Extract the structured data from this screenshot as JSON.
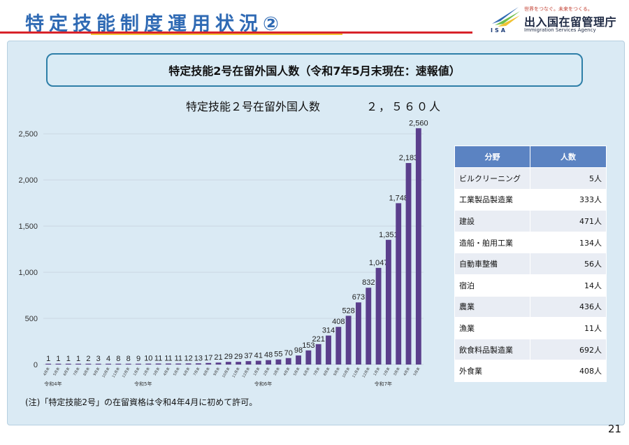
{
  "header": {
    "title": "特定技能制度運用状況②",
    "agency_tagline": "世界をつなぐ。未来をつくる。",
    "agency_name_jp": "出入国在留管理庁",
    "agency_name_en": "Immigration Services Agency",
    "agency_abbr": "ISA"
  },
  "subtitle": "特定技能2号在留外国人数（令和7年5月末現在：速報値）",
  "total": {
    "label": "特定技能２号在留外国人数",
    "value": "２，５６０人"
  },
  "field_table": {
    "headers": [
      "分野",
      "人数"
    ],
    "rows": [
      {
        "field": "ビルクリーニング",
        "count": "5人"
      },
      {
        "field": "工業製品製造業",
        "count": "333人"
      },
      {
        "field": "建設",
        "count": "471人"
      },
      {
        "field": "造船・舶用工業",
        "count": "134人"
      },
      {
        "field": "自動車整備",
        "count": "56人"
      },
      {
        "field": "宿泊",
        "count": "14人"
      },
      {
        "field": "農業",
        "count": "436人"
      },
      {
        "field": "漁業",
        "count": "11人"
      },
      {
        "field": "飲食料品製造業",
        "count": "692人"
      },
      {
        "field": "外食業",
        "count": "408人"
      }
    ]
  },
  "footnote": "(注)「特定技能2号」の在留資格は令和4年4月に初めて許可。",
  "page_number": "21",
  "chart_data": {
    "type": "bar",
    "categories": [
      "4月末",
      "5月末",
      "6月末",
      "7月末",
      "8月末",
      "9月末",
      "10月末",
      "11月末",
      "12月末",
      "1月末",
      "2月末",
      "3月末",
      "4月末",
      "5月末",
      "6月末",
      "7月末",
      "8月末",
      "9月末",
      "10月末",
      "11月末",
      "12月末",
      "1月末",
      "2月末",
      "3月末",
      "4月末",
      "5月末",
      "6月末",
      "7月末",
      "8月末",
      "9月末",
      "10月末",
      "11月末",
      "12月末",
      "1月末",
      "2月末",
      "3月末",
      "4月末",
      "5月末"
    ],
    "values": [
      1,
      1,
      1,
      1,
      2,
      3,
      4,
      8,
      8,
      9,
      10,
      11,
      11,
      11,
      12,
      13,
      17,
      21,
      29,
      29,
      37,
      41,
      48,
      55,
      70,
      98,
      153,
      221,
      314,
      408,
      528,
      673,
      832,
      1047,
      1351,
      1748,
      2183,
      2560
    ],
    "value_labels": [
      "1",
      "1",
      "1",
      "1",
      "2",
      "3",
      "4",
      "8",
      "8",
      "9",
      "10",
      "11",
      "11",
      "11",
      "12",
      "13",
      "17",
      "21",
      "29",
      "29",
      "37",
      "41",
      "48",
      "55",
      "70",
      "98",
      "153",
      "221",
      "314",
      "408",
      "528",
      "673",
      "832",
      "1,047",
      "1,351",
      "1,748",
      "2,183",
      "2,560"
    ],
    "year_labels": [
      {
        "label": "令和4年",
        "index": 0
      },
      {
        "label": "令和5年",
        "index": 9
      },
      {
        "label": "令和6年",
        "index": 21
      },
      {
        "label": "令和7年",
        "index": 33
      }
    ],
    "y_ticks": [
      0,
      500,
      1000,
      1500,
      2000,
      2500
    ],
    "y_tick_labels": [
      "0",
      "500",
      "1,000",
      "1,500",
      "2,000",
      "2,500"
    ],
    "ylim": [
      0,
      2600
    ],
    "bar_color": "#5b3f8c",
    "grid": true
  }
}
